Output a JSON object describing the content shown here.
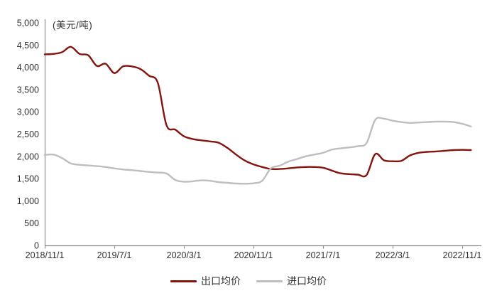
{
  "chart": {
    "colors": {
      "export": "#85140F",
      "import": "#BFBEBE",
      "axis": "#8C8C8C",
      "tick_text": "#303030"
    }
  },
  "chart_data": {
    "type": "line",
    "title": "",
    "unit": "(美元/吨)",
    "xlabel": "",
    "ylabel": "",
    "ylim": [
      0,
      5000
    ],
    "y_tick_step": 500,
    "grid": false,
    "legend_position": "bottom",
    "x_tick_labels": [
      "2018/11/1",
      "2019/7/1",
      "2020/3/1",
      "2020/11/1",
      "2021/7/1",
      "2022/3/1",
      "2022/11/1"
    ],
    "x_tick_month_index": [
      0,
      8,
      16,
      24,
      32,
      40,
      48
    ],
    "x": [
      "2018/11",
      "2018/12",
      "2019/1",
      "2019/2",
      "2019/3",
      "2019/4",
      "2019/5",
      "2019/6",
      "2019/7",
      "2019/8",
      "2019/9",
      "2019/10",
      "2019/11",
      "2019/12",
      "2020/1",
      "2020/2",
      "2020/3",
      "2020/4",
      "2020/5",
      "2020/6",
      "2020/7",
      "2020/8",
      "2020/9",
      "2020/10",
      "2020/11",
      "2020/12",
      "2021/1",
      "2021/2",
      "2021/3",
      "2021/4",
      "2021/5",
      "2021/6",
      "2021/7",
      "2021/8",
      "2021/9",
      "2021/10",
      "2021/11",
      "2021/12",
      "2022/1",
      "2022/2",
      "2022/3",
      "2022/4",
      "2022/5",
      "2022/6",
      "2022/7",
      "2022/8",
      "2022/9",
      "2022/10",
      "2022/11",
      "2022/12"
    ],
    "series": [
      {
        "key": "export",
        "name": "出口均价",
        "color": "#85140F",
        "values": [
          4290,
          4300,
          4340,
          4460,
          4300,
          4270,
          4030,
          4080,
          3870,
          4020,
          4020,
          3960,
          3810,
          3650,
          2700,
          2600,
          2450,
          2390,
          2360,
          2335,
          2305,
          2190,
          2040,
          1905,
          1820,
          1760,
          1715,
          1715,
          1730,
          1750,
          1760,
          1760,
          1745,
          1680,
          1620,
          1600,
          1590,
          1580,
          2050,
          1910,
          1890,
          1900,
          2020,
          2080,
          2100,
          2110,
          2125,
          2140,
          2145,
          2140
        ]
      },
      {
        "key": "import",
        "name": "进口均价",
        "color": "#BFBEBE",
        "values": [
          2030,
          2040,
          1960,
          1840,
          1810,
          1795,
          1780,
          1760,
          1730,
          1705,
          1690,
          1670,
          1650,
          1635,
          1615,
          1470,
          1430,
          1440,
          1460,
          1450,
          1420,
          1405,
          1390,
          1385,
          1395,
          1450,
          1730,
          1790,
          1880,
          1940,
          2000,
          2040,
          2080,
          2150,
          2180,
          2200,
          2230,
          2300,
          2820,
          2845,
          2800,
          2770,
          2750,
          2760,
          2770,
          2780,
          2780,
          2770,
          2730,
          2670
        ]
      }
    ]
  }
}
